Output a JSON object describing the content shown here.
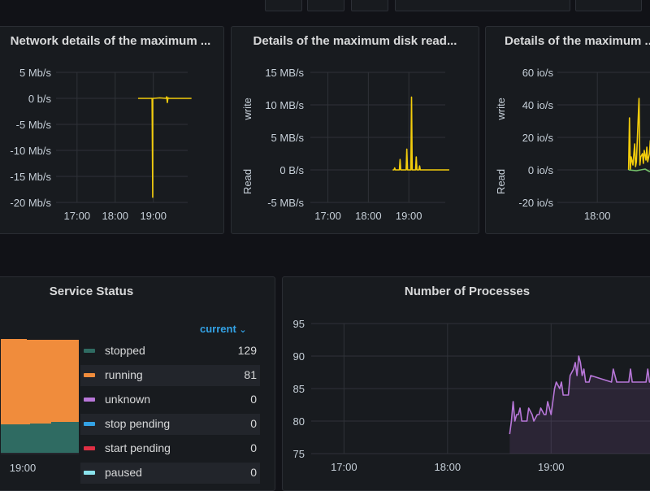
{
  "colors": {
    "bg": "#111217",
    "panel": "#181b1f",
    "grid": "#2f3238",
    "text": "#c7d0d9",
    "yellow": "#f2cc0c",
    "green": "#73bf69",
    "orange": "#f08c3c",
    "teal": "#2f6b62",
    "purple": "#b877d9",
    "blue": "#33a2e5",
    "red": "#e02f44",
    "cyan": "#8ae2ec"
  },
  "panels": {
    "network": {
      "title": "Network details of the maximum ...",
      "chart_data": {
        "type": "line",
        "y_ticks": [
          "5 Mb/s",
          "0 b/s",
          "-5 Mb/s",
          "-10 Mb/s",
          "-15 Mb/s",
          "-20 Mb/s"
        ],
        "x_ticks": [
          "17:00",
          "18:00",
          "19:00"
        ],
        "ylim": [
          -20,
          5
        ],
        "series": [
          {
            "color": "yellow",
            "x": [
              "18:36",
              "18:50",
              "18:58",
              "18:59",
              "18:59",
              "19:00",
              "19:10",
              "19:20",
              "19:21",
              "19:22",
              "19:23",
              "19:25",
              "19:40",
              "20:00"
            ],
            "y": [
              0,
              0,
              0,
              -19,
              0,
              0,
              0.1,
              0,
              0.3,
              -0.8,
              0.1,
              0,
              0,
              0
            ]
          }
        ]
      }
    },
    "disk": {
      "title": "Details of the maximum disk read...",
      "chart_data": {
        "type": "line",
        "y_ticks": [
          "15 MB/s",
          "10 MB/s",
          "5 MB/s",
          "0 B/s",
          "-5 MB/s"
        ],
        "x_ticks": [
          "17:00",
          "18:00",
          "19:00"
        ],
        "ylabel_top": "write",
        "ylabel_bottom": "Read",
        "ylim": [
          -5,
          15
        ],
        "series": [
          {
            "color": "yellow",
            "x": [
              "18:36",
              "18:38",
              "18:39",
              "18:40",
              "18:46",
              "18:47",
              "18:48",
              "18:56",
              "18:57",
              "18:58",
              "19:03",
              "19:04",
              "19:05",
              "19:10",
              "19:11",
              "19:12",
              "19:15",
              "19:16",
              "19:17",
              "19:25",
              "20:00"
            ],
            "y": [
              0,
              0,
              0.3,
              0,
              0,
              1.6,
              0,
              0,
              3.2,
              0,
              0,
              11.2,
              0,
              0,
              2.0,
              0,
              0,
              0.6,
              0,
              0,
              0
            ]
          }
        ]
      }
    },
    "iops": {
      "title": "Details of the maximum ...",
      "chart_data": {
        "type": "line",
        "y_ticks": [
          "60 io/s",
          "40 io/s",
          "20 io/s",
          "0 io/s",
          "-20 io/s"
        ],
        "x_ticks": [
          "18:00"
        ],
        "ylabel_top": "write",
        "ylabel_bottom": "Read",
        "ylim": [
          -20,
          60
        ],
        "series": [
          {
            "color": "yellow",
            "x": [
              "18:36",
              "18:37",
              "18:38",
              "18:39",
              "18:41",
              "18:43",
              "18:44",
              "18:45",
              "18:48",
              "18:49",
              "18:50",
              "18:52",
              "18:53",
              "18:54",
              "18:56",
              "18:57",
              "18:58",
              "19:00",
              "19:01",
              "19:02",
              "19:04",
              "19:05",
              "19:06",
              "19:08",
              "19:10"
            ],
            "y": [
              0,
              32,
              0,
              8,
              3,
              16,
              2,
              5,
              44,
              3,
              8,
              10,
              4,
              12,
              6,
              14,
              5,
              10,
              18,
              6,
              12,
              4,
              8,
              10,
              4
            ]
          },
          {
            "color": "green",
            "x": [
              "18:36",
              "18:45",
              "18:55",
              "19:00",
              "19:05",
              "19:08",
              "19:10"
            ],
            "y": [
              0,
              -0.5,
              0.5,
              -1,
              0,
              -3,
              0
            ]
          }
        ]
      }
    },
    "service": {
      "title": "Service Status",
      "legend_header": "current",
      "x_ticks": [
        "19:00"
      ],
      "legend": [
        {
          "name": "stopped",
          "value": "129",
          "color": "teal"
        },
        {
          "name": "running",
          "value": "81",
          "color": "orange"
        },
        {
          "name": "unknown",
          "value": "0",
          "color": "purple"
        },
        {
          "name": "stop pending",
          "value": "0",
          "color": "blue"
        },
        {
          "name": "start pending",
          "value": "0",
          "color": "red"
        },
        {
          "name": "paused",
          "value": "0",
          "color": "cyan"
        }
      ]
    },
    "processes": {
      "title": "Number of Processes",
      "chart_data": {
        "type": "area",
        "y_ticks": [
          "95",
          "90",
          "85",
          "80",
          "75"
        ],
        "x_ticks": [
          "17:00",
          "18:00",
          "19:00"
        ],
        "ylim": [
          75,
          95
        ],
        "series": [
          {
            "color": "purple",
            "x": [
              "18:36",
              "18:37",
              "18:38",
              "18:39",
              "18:40",
              "18:41",
              "18:42",
              "18:43",
              "18:46",
              "18:47",
              "18:49",
              "18:50",
              "18:52",
              "18:53",
              "18:54",
              "18:56",
              "18:57",
              "18:58",
              "18:59",
              "19:00",
              "19:01",
              "19:02",
              "19:03",
              "19:05",
              "19:06",
              "19:07",
              "19:10",
              "19:11",
              "19:13",
              "19:14",
              "19:15",
              "19:16",
              "19:17",
              "19:18",
              "19:19",
              "19:20",
              "19:22",
              "19:23",
              "19:35",
              "19:36",
              "19:37",
              "19:38",
              "19:45",
              "19:46",
              "19:47",
              "19:55",
              "19:56",
              "19:57",
              "20:00"
            ],
            "y": [
              78,
              80,
              83,
              80,
              81,
              81,
              82,
              80,
              80,
              82,
              81,
              80,
              81,
              81,
              82,
              81,
              81,
              83,
              82,
              81,
              83,
              85,
              86,
              85,
              86,
              84,
              84,
              87,
              88,
              89,
              87,
              90,
              89,
              87,
              88,
              86,
              86,
              87,
              86,
              88,
              87,
              86,
              86,
              88,
              86,
              86,
              88,
              86,
              86
            ]
          }
        ]
      }
    }
  }
}
